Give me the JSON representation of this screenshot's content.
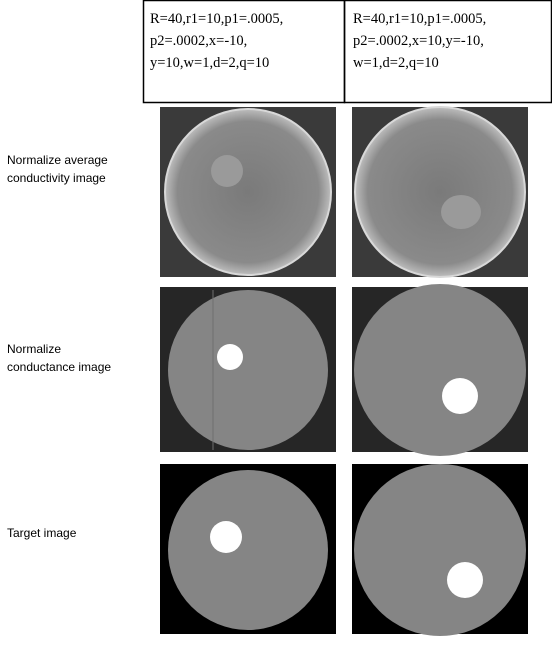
{
  "header": {
    "columns": [
      {
        "lines": [
          "R=40,r1=10,p1=.0005,",
          "p2=.0002,x=-10,",
          "y=10,w=1,d=2,q=10"
        ]
      },
      {
        "lines": [
          "R=40,r1=10,p1=.0005,",
          "p2=.0002,x=10,y=-10,",
          "w=1,d=2,q=10"
        ]
      }
    ]
  },
  "rows": [
    {
      "label": [
        "Normalize average",
        "conductivity image"
      ]
    },
    {
      "label": [
        "Normalize",
        "conductance image"
      ]
    },
    {
      "label": [
        "Target image"
      ]
    }
  ]
}
